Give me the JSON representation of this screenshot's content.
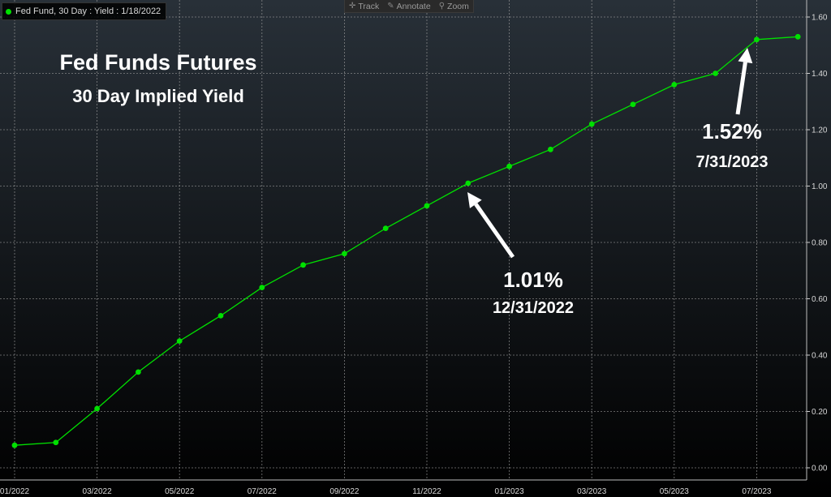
{
  "legend": {
    "text": "Fed Fund, 30 Day : Yield : 1/18/2022"
  },
  "toolbar": {
    "track": "Track",
    "annotate": "Annotate",
    "zoom": "Zoom"
  },
  "overlay": {
    "title": "Fed Funds Futures",
    "subtitle": "30 Day Implied Yield"
  },
  "annotations": [
    {
      "value": "1.01%",
      "date": "12/31/2022"
    },
    {
      "value": "1.52%",
      "date": "7/31/2023"
    }
  ],
  "colors": {
    "background_top": "#283038",
    "background_bottom": "#000000",
    "series": "#00e000",
    "grid": "#9a9a9a",
    "text": "#ffffff"
  },
  "chart_data": {
    "type": "line",
    "title": "",
    "xlabel": "",
    "ylabel": "",
    "x_tick_labels": [
      "01/2022",
      "03/2022",
      "05/2022",
      "07/2022",
      "09/2022",
      "11/2022",
      "01/2023",
      "03/2023",
      "05/2023",
      "07/2023"
    ],
    "y_tick_labels": [
      "0.00",
      "0.20",
      "0.40",
      "0.60",
      "0.80",
      "1.00",
      "1.20",
      "1.40",
      "1.60"
    ],
    "ylim": [
      -0.01,
      1.62
    ],
    "y_axis_position": "right",
    "grid": true,
    "series": [
      {
        "name": "Fed Fund, 30 Day",
        "x": [
          "2022-01",
          "2022-02",
          "2022-03",
          "2022-04",
          "2022-05",
          "2022-06",
          "2022-07",
          "2022-08",
          "2022-09",
          "2022-10",
          "2022-11",
          "2022-12",
          "2023-01",
          "2023-02",
          "2023-03",
          "2023-04",
          "2023-05",
          "2023-06",
          "2023-07",
          "2023-08"
        ],
        "values": [
          0.08,
          0.09,
          0.21,
          0.34,
          0.45,
          0.54,
          0.64,
          0.72,
          0.76,
          0.85,
          0.93,
          1.01,
          1.07,
          1.13,
          1.22,
          1.29,
          1.36,
          1.4,
          1.52,
          1.53
        ]
      }
    ]
  }
}
